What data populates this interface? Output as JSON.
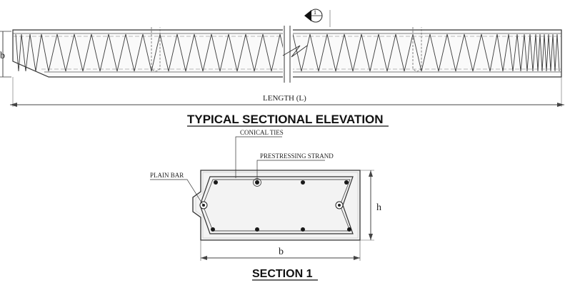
{
  "elevation": {
    "b_label": "b",
    "length_label": "LENGTH (L)",
    "title": "TYPICAL SECTIONAL ELEVATION",
    "section_marker": "1"
  },
  "section": {
    "title": "SECTION 1",
    "labels": {
      "conical_ties": "CONICAL TIES",
      "prestressing_strand": "PRESTRESSING STRAND",
      "plain_bar": "PLAIN BAR",
      "h": "h",
      "b": "b"
    }
  },
  "colors": {
    "line": "#333333",
    "concrete": "#f3f3f3",
    "steel": "#1a1a1a"
  }
}
